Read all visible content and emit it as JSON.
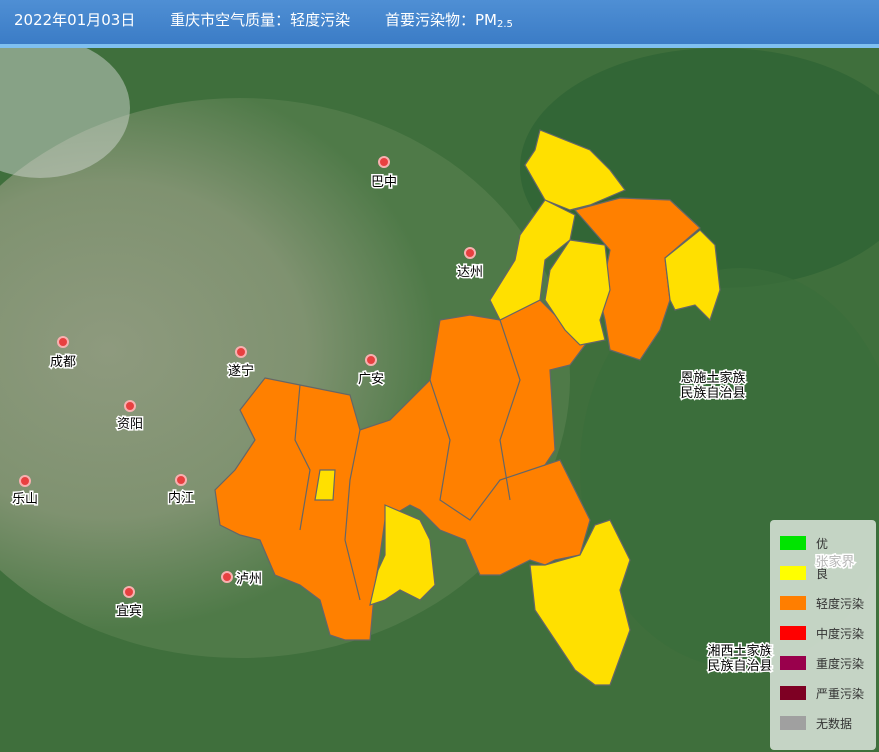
{
  "header": {
    "date": "2022年01月03日",
    "quality": "重庆市空气质量：轻度污染",
    "pollutant_label": "首要污染物：",
    "pollutant_name": "PM",
    "pollutant_sub": "2.5"
  },
  "map": {
    "cities": [
      {
        "name": "巴中",
        "marker": true
      },
      {
        "name": "达州",
        "marker": true
      },
      {
        "name": "成都",
        "marker": true
      },
      {
        "name": "遂宁",
        "marker": true
      },
      {
        "name": "广安",
        "marker": true
      },
      {
        "name": "资阳",
        "marker": true
      },
      {
        "name": "乐山",
        "marker": true
      },
      {
        "name": "内江",
        "marker": true
      },
      {
        "name": "泸州",
        "marker": true
      },
      {
        "name": "宜宾",
        "marker": true
      },
      {
        "name": "恩施土家族",
        "marker": false
      },
      {
        "name": "民族自治县",
        "marker": false
      },
      {
        "name": "张家界",
        "marker": false
      },
      {
        "name": "湘西土家族",
        "marker": false
      },
      {
        "name": "民族自治县",
        "marker": false
      }
    ]
  },
  "legend": [
    {
      "label": "优",
      "color": "#00e400"
    },
    {
      "label": "良",
      "color": "#ffff00"
    },
    {
      "label": "轻度污染",
      "color": "#ff7e00"
    },
    {
      "label": "中度污染",
      "color": "#ff0000"
    },
    {
      "label": "重度污染",
      "color": "#99004c"
    },
    {
      "label": "严重污染",
      "color": "#7e0023"
    },
    {
      "label": "无数据",
      "color": "#a0a0a0"
    }
  ]
}
